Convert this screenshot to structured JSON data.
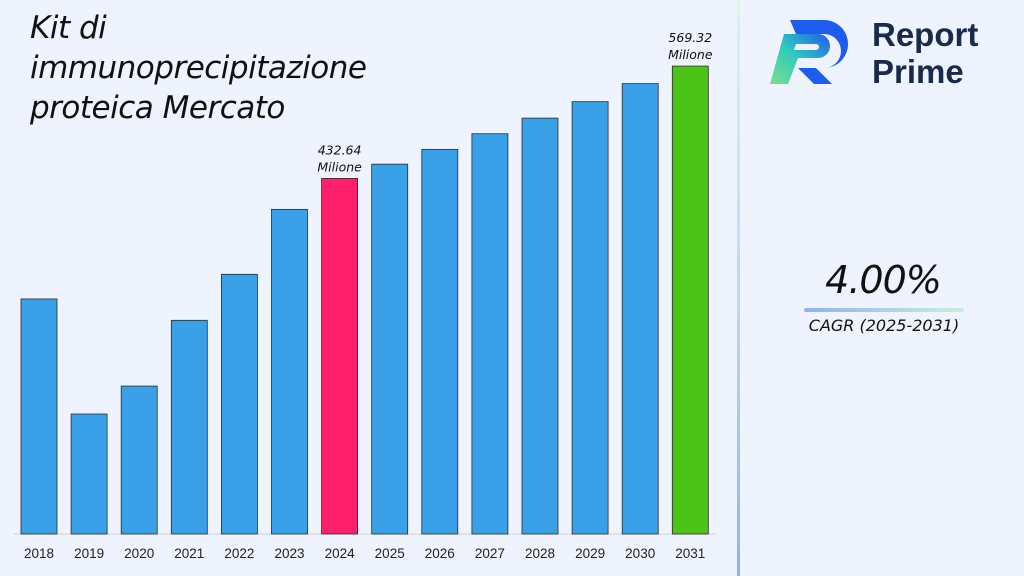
{
  "chart_data": {
    "type": "bar",
    "title": "Kit di immunoprecipitazione proteica Mercato",
    "categories": [
      "2018",
      "2019",
      "2020",
      "2021",
      "2022",
      "2023",
      "2024",
      "2025",
      "2026",
      "2027",
      "2028",
      "2029",
      "2030",
      "2031"
    ],
    "values": [
      286,
      146,
      180,
      260,
      316,
      395,
      432.64,
      450,
      468,
      487,
      506,
      526,
      548,
      569.32
    ],
    "annotations": [
      {
        "category": "2024",
        "line1": "432.64",
        "line2": "Milione"
      },
      {
        "category": "2031",
        "line1": "569.32",
        "line2": "Milione"
      }
    ],
    "ylim": [
      0,
      640
    ],
    "grid": false,
    "colors": {
      "default": "#3aa0e8",
      "highlight_2024": "#ff1f6b",
      "highlight_2031": "#4cc417",
      "bar_edge": "#2b2b2b"
    }
  },
  "brand": {
    "line1": "Report",
    "line2": "Prime",
    "logo_colors": [
      "#1e5cf0",
      "#2fc9c0",
      "#7be08a"
    ]
  },
  "kpi": {
    "value": "4.00%",
    "label": "CAGR (2025-2031)"
  }
}
